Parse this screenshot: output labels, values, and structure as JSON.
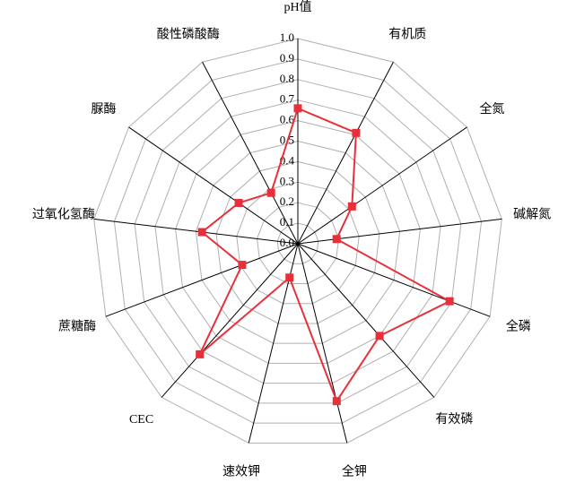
{
  "chart_data": {
    "type": "radar",
    "categories": [
      "pH值",
      "有机质",
      "全氮",
      "碱解氮",
      "全磷",
      "有效磷",
      "全钾",
      "速效钾",
      "CEC",
      "蔗糖酶",
      "过氧化氢酶",
      "脲酶",
      "酸性磷酸酶"
    ],
    "series": [
      {
        "color": "#e8303a",
        "values": [
          0.66,
          0.61,
          0.32,
          0.19,
          0.79,
          0.6,
          0.79,
          0.17,
          0.72,
          0.29,
          0.47,
          0.35,
          0.28
        ]
      }
    ],
    "ylim": [
      0,
      1
    ],
    "yticks": [
      {
        "value": 0,
        "label": "0.0"
      },
      0.1,
      0.2,
      0.3,
      0.4,
      0.5,
      0.6,
      0.7,
      0.8,
      0.9,
      {
        "value": 1,
        "label": "1.0"
      }
    ],
    "grid": true
  }
}
